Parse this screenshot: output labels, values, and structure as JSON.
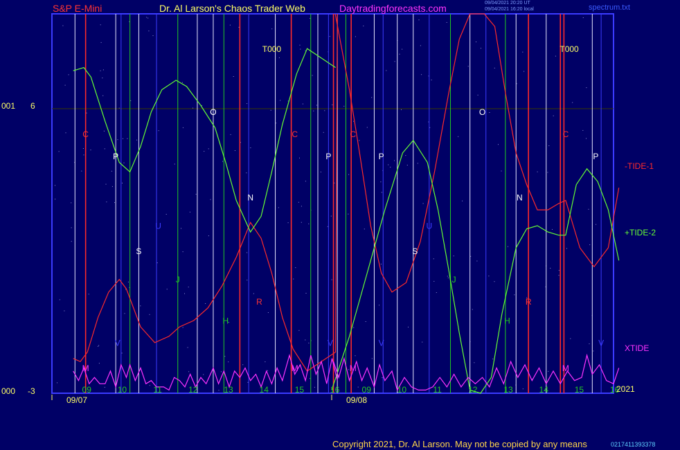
{
  "header": {
    "symbol": "S&P E-Mini",
    "site": "Dr. Al Larson's Chaos Trader Web",
    "url": "Daytradingforecasts.com",
    "timestamp1": "09/04/2021 20:20 UT",
    "timestamp2": "09/04/2021 16:20 local",
    "file": "spectrum.txt"
  },
  "left_axis": {
    "top_value": "001",
    "top_scale": "6",
    "bottom_value": "000",
    "bottom_scale": "-3"
  },
  "legend": {
    "tide1": "-TIDE-1",
    "tide2": "+TIDE-2",
    "xtide": "XTIDE"
  },
  "year": "2021",
  "copyright": "Copyright 2021, Dr. Al Larson. May not be copied by any means",
  "overlap_text": "0217411393378",
  "colors": {
    "background": "#000066",
    "frame": "#3b3bff",
    "tide1": "#ff2a2a",
    "tide2": "#66ff33",
    "xtide": "#ff33ff",
    "marker_text": "#ffff66",
    "date_text": "#ffff66",
    "site": "#ffff66",
    "url": "#ff33ff",
    "symbol": "#ff3333"
  },
  "chart_data": {
    "type": "line",
    "x_unit": "hour",
    "x_ticks": [
      "09",
      "10",
      "11",
      "12",
      "13",
      "14",
      "15",
      "16",
      "09",
      "10",
      "11",
      "12",
      "13",
      "14",
      "15",
      "16"
    ],
    "date_labels": [
      {
        "label": "09/07",
        "day": 1
      },
      {
        "label": "09/08",
        "day": 2
      }
    ],
    "ylim": [
      -3,
      9
    ],
    "y_gridline": 6,
    "series": [
      {
        "name": "-TIDE-1",
        "color": "#ff2a2a",
        "values_day1": [
          [
            8.6,
            -1.9
          ],
          [
            8.8,
            -2.0
          ],
          [
            9.0,
            -1.7
          ],
          [
            9.3,
            -0.6
          ],
          [
            9.6,
            0.2
          ],
          [
            9.9,
            0.6
          ],
          [
            10.1,
            0.3
          ],
          [
            10.5,
            -0.9
          ],
          [
            10.9,
            -1.4
          ],
          [
            11.3,
            -1.2
          ],
          [
            11.6,
            -0.9
          ],
          [
            12.0,
            -0.7
          ],
          [
            12.4,
            -0.3
          ],
          [
            12.8,
            0.4
          ],
          [
            13.2,
            1.3
          ],
          [
            13.6,
            2.4
          ],
          [
            13.9,
            1.9
          ],
          [
            14.2,
            0.8
          ],
          [
            14.5,
            -0.6
          ],
          [
            14.8,
            -1.6
          ],
          [
            15.2,
            -2.3
          ],
          [
            15.6,
            -2.0
          ],
          [
            16.0,
            -1.7
          ],
          [
            16.05,
            9.2
          ]
        ],
        "values_day2": [
          [
            8.1,
            9.2
          ],
          [
            8.5,
            6.6
          ],
          [
            8.8,
            4.5
          ],
          [
            9.1,
            2.3
          ],
          [
            9.4,
            0.8
          ],
          [
            9.7,
            0.2
          ],
          [
            10.1,
            0.5
          ],
          [
            10.5,
            1.8
          ],
          [
            10.9,
            4.0
          ],
          [
            11.3,
            6.5
          ],
          [
            11.6,
            8.2
          ],
          [
            11.9,
            9.5
          ],
          [
            12.3,
            9.7
          ],
          [
            12.6,
            8.6
          ],
          [
            12.9,
            6.5
          ],
          [
            13.2,
            4.6
          ],
          [
            13.5,
            3.6
          ],
          [
            13.8,
            2.8
          ],
          [
            14.1,
            2.8
          ],
          [
            14.4,
            3.0
          ],
          [
            14.6,
            3.1
          ],
          [
            15.0,
            1.6
          ],
          [
            15.4,
            1.0
          ],
          [
            15.8,
            1.6
          ],
          [
            16.1,
            3.5
          ]
        ]
      },
      {
        "name": "+TIDE-2",
        "color": "#66ff33",
        "values_day1": [
          [
            8.6,
            7.2
          ],
          [
            8.9,
            7.3
          ],
          [
            9.1,
            7.0
          ],
          [
            9.5,
            5.6
          ],
          [
            9.9,
            4.3
          ],
          [
            10.2,
            4.0
          ],
          [
            10.5,
            4.8
          ],
          [
            10.8,
            5.9
          ],
          [
            11.1,
            6.6
          ],
          [
            11.5,
            6.9
          ],
          [
            11.8,
            6.7
          ],
          [
            12.2,
            6.1
          ],
          [
            12.6,
            5.4
          ],
          [
            12.9,
            4.3
          ],
          [
            13.2,
            3.1
          ],
          [
            13.6,
            2.1
          ],
          [
            13.9,
            2.6
          ],
          [
            14.2,
            4.0
          ],
          [
            14.5,
            5.5
          ],
          [
            14.9,
            7.1
          ],
          [
            15.2,
            7.9
          ],
          [
            15.6,
            7.6
          ],
          [
            16.0,
            7.3
          ]
        ],
        "values_day2": [
          [
            8.0,
            -2.9
          ],
          [
            8.5,
            -1.2
          ],
          [
            9.0,
            0.8
          ],
          [
            9.5,
            2.8
          ],
          [
            10.0,
            4.6
          ],
          [
            10.3,
            5.0
          ],
          [
            10.7,
            4.3
          ],
          [
            11.0,
            2.8
          ],
          [
            11.3,
            0.9
          ],
          [
            11.6,
            -1.1
          ],
          [
            11.9,
            -2.9
          ],
          [
            12.2,
            -4.0
          ],
          [
            12.5,
            -2.5
          ],
          [
            12.8,
            -0.5
          ],
          [
            13.2,
            1.6
          ],
          [
            13.5,
            2.2
          ],
          [
            13.8,
            2.3
          ],
          [
            14.1,
            2.1
          ],
          [
            14.4,
            2.0
          ],
          [
            14.6,
            2.0
          ],
          [
            14.9,
            3.6
          ],
          [
            15.2,
            4.1
          ],
          [
            15.5,
            3.7
          ],
          [
            15.8,
            2.8
          ],
          [
            16.1,
            1.2
          ]
        ]
      },
      {
        "name": "XTIDE",
        "color": "#ff33ff",
        "values_day1": [
          [
            8.6,
            -2.3
          ],
          [
            8.75,
            -2.6
          ],
          [
            8.9,
            -2.2
          ],
          [
            9.05,
            -2.7
          ],
          [
            9.2,
            -2.5
          ],
          [
            9.35,
            -2.7
          ],
          [
            9.5,
            -2.7
          ],
          [
            9.65,
            -2.3
          ],
          [
            9.8,
            -2.8
          ],
          [
            9.95,
            -2.1
          ],
          [
            10.1,
            -2.5
          ],
          [
            10.2,
            -2.1
          ],
          [
            10.35,
            -2.6
          ],
          [
            10.5,
            -2.2
          ],
          [
            10.65,
            -2.7
          ],
          [
            10.8,
            -2.6
          ],
          [
            10.95,
            -2.8
          ],
          [
            11.15,
            -2.8
          ],
          [
            11.3,
            -2.9
          ],
          [
            11.45,
            -2.5
          ],
          [
            11.6,
            -2.6
          ],
          [
            11.75,
            -2.8
          ],
          [
            11.9,
            -2.4
          ],
          [
            12.05,
            -2.8
          ],
          [
            12.2,
            -2.5
          ],
          [
            12.35,
            -2.7
          ],
          [
            12.55,
            -2.2
          ],
          [
            12.7,
            -2.7
          ],
          [
            12.85,
            -2.3
          ],
          [
            13.0,
            -2.8
          ],
          [
            13.15,
            -2.3
          ],
          [
            13.3,
            -2.5
          ],
          [
            13.45,
            -2.2
          ],
          [
            13.6,
            -2.6
          ],
          [
            13.75,
            -2.4
          ],
          [
            13.9,
            -2.8
          ],
          [
            14.05,
            -2.3
          ],
          [
            14.2,
            -2.7
          ],
          [
            14.35,
            -2.2
          ],
          [
            14.5,
            -2.6
          ],
          [
            14.7,
            -1.8
          ],
          [
            14.85,
            -2.4
          ],
          [
            15.0,
            -2.1
          ],
          [
            15.15,
            -2.6
          ],
          [
            15.3,
            -1.8
          ],
          [
            15.45,
            -2.4
          ],
          [
            15.6,
            -2.0
          ],
          [
            15.75,
            -2.7
          ],
          [
            15.9,
            -1.9
          ],
          [
            16.05,
            -2.6
          ]
        ],
        "values_day2": [
          [
            8.05,
            -2.0
          ],
          [
            8.2,
            -2.5
          ],
          [
            8.35,
            -1.9
          ],
          [
            8.5,
            -2.6
          ],
          [
            8.7,
            -2.0
          ],
          [
            8.85,
            -2.6
          ],
          [
            9.0,
            -2.2
          ],
          [
            9.2,
            -2.8
          ],
          [
            9.35,
            -2.1
          ],
          [
            9.5,
            -2.6
          ],
          [
            9.7,
            -2.3
          ],
          [
            9.85,
            -2.9
          ],
          [
            10.05,
            -2.5
          ],
          [
            10.25,
            -2.8
          ],
          [
            10.45,
            -2.9
          ],
          [
            10.65,
            -2.9
          ],
          [
            10.85,
            -2.8
          ],
          [
            11.05,
            -2.5
          ],
          [
            11.25,
            -2.8
          ],
          [
            11.45,
            -2.4
          ],
          [
            11.65,
            -2.8
          ],
          [
            11.85,
            -2.5
          ],
          [
            12.05,
            -2.7
          ],
          [
            12.25,
            -2.5
          ],
          [
            12.45,
            -2.8
          ],
          [
            12.65,
            -2.2
          ],
          [
            12.85,
            -2.7
          ],
          [
            13.05,
            -2.0
          ],
          [
            13.25,
            -2.5
          ],
          [
            13.45,
            -2.1
          ],
          [
            13.65,
            -2.6
          ],
          [
            13.85,
            -2.2
          ],
          [
            14.05,
            -2.7
          ],
          [
            14.25,
            -2.3
          ],
          [
            14.45,
            -2.7
          ],
          [
            14.65,
            -2.3
          ],
          [
            14.85,
            -2.6
          ],
          [
            15.05,
            -2.5
          ],
          [
            15.2,
            -1.8
          ],
          [
            15.35,
            -2.4
          ],
          [
            15.55,
            -2.1
          ],
          [
            15.75,
            -2.6
          ],
          [
            15.95,
            -2.7
          ],
          [
            16.1,
            -2.2
          ]
        ]
      }
    ],
    "markers": [
      {
        "text": "T000",
        "day": 1,
        "hour": 14.2,
        "y": 7.8
      },
      {
        "text": "C",
        "day": 1,
        "hour": 8.95,
        "y": 5.1
      },
      {
        "text": "P",
        "day": 1,
        "hour": 9.8,
        "y": 4.4
      },
      {
        "text": "U",
        "day": 1,
        "hour": 11.0,
        "y": 2.2
      },
      {
        "text": "S",
        "day": 1,
        "hour": 10.45,
        "y": 1.4
      },
      {
        "text": "J",
        "day": 1,
        "hour": 11.55,
        "y": 0.5
      },
      {
        "text": "O",
        "day": 1,
        "hour": 12.55,
        "y": 5.8
      },
      {
        "text": "N",
        "day": 1,
        "hour": 13.6,
        "y": 3.1
      },
      {
        "text": "C",
        "day": 1,
        "hour": 14.85,
        "y": 5.1
      },
      {
        "text": "P",
        "day": 1,
        "hour": 15.8,
        "y": 4.4
      },
      {
        "text": "R",
        "day": 1,
        "hour": 13.85,
        "y": -0.2
      },
      {
        "text": "H",
        "day": 1,
        "hour": 12.9,
        "y": -0.8
      },
      {
        "text": "V",
        "day": 1,
        "hour": 9.85,
        "y": -1.5
      },
      {
        "text": "M",
        "day": 1,
        "hour": 8.95,
        "y": -2.3
      },
      {
        "text": "M",
        "day": 1,
        "hour": 14.85,
        "y": -2.3
      },
      {
        "text": "V",
        "day": 1,
        "hour": 15.85,
        "y": -1.5
      },
      {
        "text": "C",
        "day": 2,
        "hour": 8.6,
        "y": 5.1
      },
      {
        "text": "P",
        "day": 2,
        "hour": 9.4,
        "y": 4.4
      },
      {
        "text": "S",
        "day": 2,
        "hour": 10.35,
        "y": 1.4
      },
      {
        "text": "U",
        "day": 2,
        "hour": 10.75,
        "y": 2.2
      },
      {
        "text": "J",
        "day": 2,
        "hour": 11.45,
        "y": 0.5
      },
      {
        "text": "O",
        "day": 2,
        "hour": 12.25,
        "y": 5.8
      },
      {
        "text": "N",
        "day": 2,
        "hour": 13.3,
        "y": 3.1
      },
      {
        "text": "T000",
        "day": 2,
        "hour": 14.7,
        "y": 7.8
      },
      {
        "text": "C",
        "day": 2,
        "hour": 14.6,
        "y": 5.1
      },
      {
        "text": "P",
        "day": 2,
        "hour": 15.45,
        "y": 4.4
      },
      {
        "text": "R",
        "day": 2,
        "hour": 13.55,
        "y": -0.2
      },
      {
        "text": "H",
        "day": 2,
        "hour": 12.95,
        "y": -0.8
      },
      {
        "text": "M",
        "day": 2,
        "hour": 8.6,
        "y": -2.3
      },
      {
        "text": "V",
        "day": 2,
        "hour": 9.4,
        "y": -1.5
      },
      {
        "text": "M",
        "day": 2,
        "hour": 14.6,
        "y": -2.3
      },
      {
        "text": "V",
        "day": 2,
        "hour": 15.6,
        "y": -1.5
      }
    ],
    "vlines": [
      {
        "day": 1,
        "hour": 8.65,
        "color": "white"
      },
      {
        "day": 1,
        "hour": 8.95,
        "color": "red"
      },
      {
        "day": 1,
        "hour": 9.8,
        "color": "white"
      },
      {
        "day": 1,
        "hour": 9.95,
        "color": "blue"
      },
      {
        "day": 1,
        "hour": 10.2,
        "color": "green"
      },
      {
        "day": 1,
        "hour": 10.45,
        "color": "white"
      },
      {
        "day": 1,
        "hour": 10.95,
        "color": "blue"
      },
      {
        "day": 1,
        "hour": 11.55,
        "color": "green"
      },
      {
        "day": 1,
        "hour": 12.1,
        "color": "white"
      },
      {
        "day": 1,
        "hour": 12.55,
        "color": "white"
      },
      {
        "day": 1,
        "hour": 12.85,
        "color": "green"
      },
      {
        "day": 1,
        "hour": 13.3,
        "color": "red"
      },
      {
        "day": 1,
        "hour": 13.55,
        "color": "blue"
      },
      {
        "day": 1,
        "hour": 14.3,
        "color": "white"
      },
      {
        "day": 1,
        "hour": 14.75,
        "color": "red"
      },
      {
        "day": 1,
        "hour": 15.3,
        "color": "green"
      },
      {
        "day": 1,
        "hour": 15.5,
        "color": "white"
      },
      {
        "day": 1,
        "hour": 15.8,
        "color": "blue"
      },
      {
        "day": 1,
        "hour": 16.05,
        "color": "white"
      },
      {
        "day": 2,
        "hour": 8.05,
        "color": "red"
      },
      {
        "day": 2,
        "hour": 8.4,
        "color": "green"
      },
      {
        "day": 2,
        "hour": 8.55,
        "color": "red"
      },
      {
        "day": 2,
        "hour": 9.2,
        "color": "white"
      },
      {
        "day": 2,
        "hour": 9.45,
        "color": "blue"
      },
      {
        "day": 2,
        "hour": 9.85,
        "color": "white"
      },
      {
        "day": 2,
        "hour": 10.3,
        "color": "white"
      },
      {
        "day": 2,
        "hour": 10.75,
        "color": "blue"
      },
      {
        "day": 2,
        "hour": 11.35,
        "color": "green"
      },
      {
        "day": 2,
        "hour": 11.9,
        "color": "white"
      },
      {
        "day": 2,
        "hour": 12.35,
        "color": "blue"
      },
      {
        "day": 2,
        "hour": 12.9,
        "color": "green"
      },
      {
        "day": 2,
        "hour": 13.2,
        "color": "white"
      },
      {
        "day": 2,
        "hour": 13.55,
        "color": "red"
      },
      {
        "day": 2,
        "hour": 14.05,
        "color": "white"
      },
      {
        "day": 2,
        "hour": 14.45,
        "color": "red"
      },
      {
        "day": 2,
        "hour": 14.55,
        "color": "red"
      },
      {
        "day": 2,
        "hour": 15.35,
        "color": "white"
      },
      {
        "day": 2,
        "hour": 15.6,
        "color": "blue"
      }
    ]
  }
}
